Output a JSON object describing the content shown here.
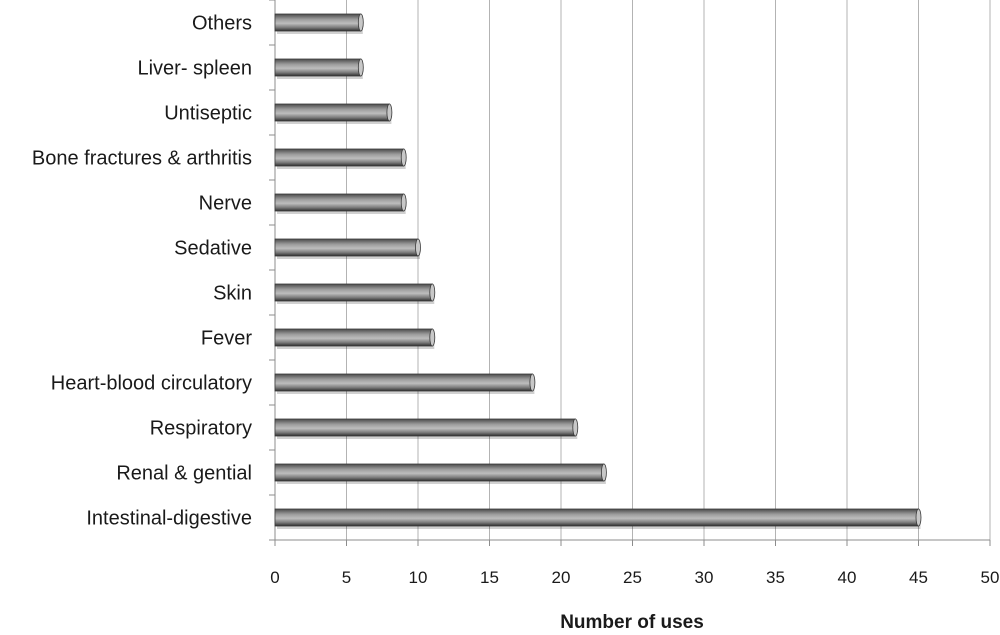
{
  "chart_data": {
    "type": "bar",
    "orientation": "horizontal",
    "categories": [
      "Intestinal-digestive",
      "Renal & gential",
      "Respiratory",
      "Heart-blood circulatory",
      "Fever",
      "Skin",
      "Sedative",
      "Nerve",
      "Bone fractures & arthritis",
      "Untiseptic",
      "Liver- spleen",
      "Others"
    ],
    "values": [
      45,
      23,
      21,
      18,
      11,
      11,
      10,
      9,
      9,
      8,
      6,
      6
    ],
    "title": "",
    "xlabel": "Number of uses",
    "ylabel": "",
    "xlim": [
      0,
      50
    ],
    "xticks": [
      0,
      5,
      10,
      15,
      20,
      25,
      30,
      35,
      40,
      45,
      50
    ],
    "grid": "vertical",
    "legend": "none",
    "colors": {
      "bar_dark": "#3a3a3a",
      "bar_mid": "#6e6e6e",
      "bar_light": "#c8c8c8",
      "grid": "#b3b3b3",
      "axis": "#8c8c8c"
    }
  }
}
